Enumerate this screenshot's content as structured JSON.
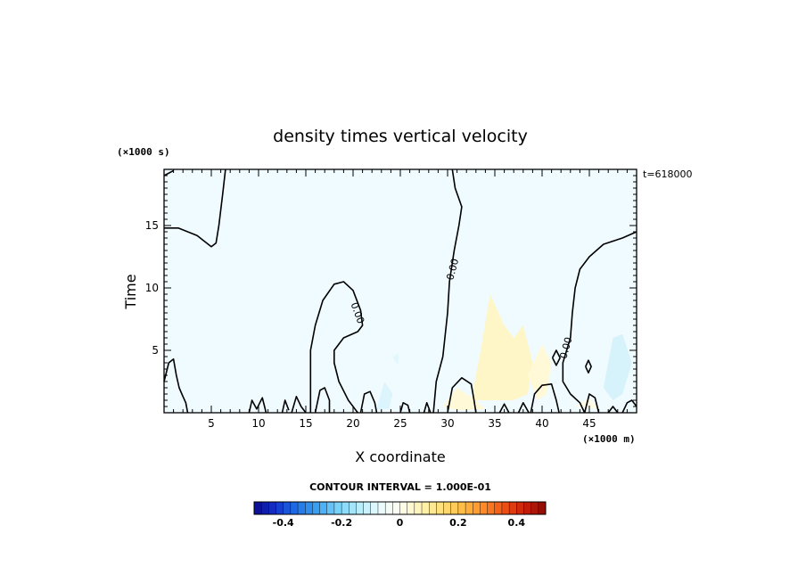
{
  "chart_data": {
    "type": "heatmap",
    "title": "density times vertical velocity",
    "xlabel": "X coordinate",
    "ylabel": "Time",
    "x_unit": "(×1000 m)",
    "y_unit": "(×1000 s)",
    "time_label": "t=618000",
    "xlim": [
      0,
      50
    ],
    "ylim": [
      0,
      19.5
    ],
    "x_ticks": [
      5,
      10,
      15,
      20,
      25,
      30,
      35,
      40,
      45
    ],
    "y_ticks": [
      5,
      10,
      15
    ],
    "contour_interval_text": "CONTOUR INTERVAL = 1.000E-01",
    "contour_labels": [
      {
        "text": "0.00",
        "x": 20.5,
        "y": 8.0,
        "angle": 70
      },
      {
        "text": "0.00",
        "x": 30.5,
        "y": 11.5,
        "angle": -75
      },
      {
        "text": "0.00",
        "x": 42.5,
        "y": 5.2,
        "angle": -75
      }
    ],
    "colorbar": {
      "min": -0.5,
      "max": 0.5,
      "tick_values": [
        -0.4,
        -0.2,
        0,
        0.2,
        0.4
      ],
      "tick_labels": [
        "-0.4",
        "-0.2",
        "0",
        "0.2",
        "0.4"
      ],
      "colors": [
        "#0a0a8c",
        "#1430c8",
        "#1e6ee6",
        "#3ca0f0",
        "#78d2f8",
        "#b4ecfc",
        "#e8fafe",
        "#fffef0",
        "#fff4b4",
        "#ffe078",
        "#ffbe46",
        "#ff8c28",
        "#f05014",
        "#c81e0a",
        "#8c0a05"
      ]
    },
    "field_background": "#f0fbff",
    "shaded_regions": [
      {
        "value": 0.04,
        "color": "#fff6c8",
        "polygon": [
          [
            32.5,
            1
          ],
          [
            33.5,
            5
          ],
          [
            34.5,
            9.5
          ],
          [
            36,
            7
          ],
          [
            37,
            6
          ],
          [
            38,
            7
          ],
          [
            39,
            4
          ],
          [
            38.5,
            1.5
          ],
          [
            37,
            1
          ],
          [
            35,
            1
          ]
        ]
      },
      {
        "value": 0.03,
        "color": "#fff9d8",
        "polygon": [
          [
            29.5,
            0.5
          ],
          [
            31,
            2
          ],
          [
            33,
            1
          ],
          [
            34,
            0.3
          ],
          [
            31,
            0.2
          ]
        ]
      },
      {
        "value": 0.03,
        "color": "#fff9d8",
        "polygon": [
          [
            38.5,
            3
          ],
          [
            40,
            5.5
          ],
          [
            41,
            4
          ],
          [
            40.5,
            1.5
          ],
          [
            39.5,
            1
          ]
        ]
      },
      {
        "value": -0.06,
        "color": "#d6f3fc",
        "polygon": [
          [
            46.5,
            2
          ],
          [
            47.5,
            6
          ],
          [
            48.5,
            6.3
          ],
          [
            49.5,
            4
          ],
          [
            48.5,
            1.5
          ],
          [
            47.5,
            1
          ]
        ]
      },
      {
        "value": -0.05,
        "color": "#dcf5fd",
        "polygon": [
          [
            22.5,
            0.3
          ],
          [
            23.3,
            2.5
          ],
          [
            24.2,
            1.5
          ],
          [
            23.8,
            0.3
          ]
        ]
      },
      {
        "value": -0.04,
        "color": "#e2f6fd",
        "polygon": [
          [
            24.2,
            4.4
          ],
          [
            24.8,
            4.8
          ],
          [
            24.8,
            3.8
          ]
        ]
      },
      {
        "value": 0.02,
        "color": "#fffbe4",
        "polygon": [
          [
            43.5,
            0.5
          ],
          [
            45,
            1.2
          ],
          [
            46,
            0.3
          ]
        ]
      }
    ],
    "contours": [
      [
        [
          0,
          19
        ],
        [
          1,
          19.4
        ]
      ],
      [
        [
          0,
          14.8
        ],
        [
          1.5,
          14.8
        ],
        [
          3.5,
          14.2
        ],
        [
          5,
          13.3
        ],
        [
          5.5,
          13.6
        ],
        [
          5.8,
          15
        ],
        [
          6.2,
          17.5
        ],
        [
          6.5,
          19.5
        ]
      ],
      [
        [
          15.5,
          0
        ],
        [
          15.5,
          5
        ],
        [
          16,
          7
        ],
        [
          16.8,
          9
        ],
        [
          18,
          10.3
        ],
        [
          19,
          10.5
        ],
        [
          20,
          9.8
        ],
        [
          20.8,
          8.2
        ],
        [
          21,
          7
        ],
        [
          20.5,
          6.5
        ],
        [
          19,
          6
        ],
        [
          18,
          5
        ],
        [
          18,
          4
        ],
        [
          18.5,
          2.5
        ],
        [
          19.5,
          1
        ],
        [
          20.2,
          0.3
        ],
        [
          20.5,
          0
        ]
      ],
      [
        [
          28.5,
          0
        ],
        [
          28.8,
          2.5
        ],
        [
          29.5,
          4.5
        ],
        [
          30,
          8
        ],
        [
          30.2,
          10.5
        ],
        [
          30.7,
          13
        ],
        [
          31.2,
          15
        ],
        [
          31.5,
          16.5
        ],
        [
          30.8,
          18
        ],
        [
          30.5,
          19.5
        ]
      ],
      [
        [
          50,
          14.5
        ],
        [
          48.5,
          14
        ],
        [
          46.5,
          13.5
        ],
        [
          45,
          12.5
        ],
        [
          44,
          11.5
        ],
        [
          43.5,
          10
        ],
        [
          43.2,
          8
        ],
        [
          43,
          6
        ],
        [
          42.2,
          4
        ],
        [
          42.2,
          2.5
        ],
        [
          43,
          1.5
        ],
        [
          44,
          0.8
        ],
        [
          44.5,
          0
        ]
      ],
      [
        [
          0,
          2.5
        ],
        [
          0.5,
          4
        ],
        [
          1,
          4.3
        ],
        [
          1.3,
          3
        ],
        [
          1.6,
          2
        ],
        [
          2,
          1.3
        ],
        [
          2.3,
          0.8
        ],
        [
          2.5,
          0
        ]
      ],
      [
        [
          12.5,
          0
        ],
        [
          12.8,
          1
        ],
        [
          13.2,
          0.2
        ]
      ],
      [
        [
          13.5,
          0
        ],
        [
          14,
          1.3
        ],
        [
          14.5,
          0.5
        ],
        [
          15,
          0
        ]
      ],
      [
        [
          9,
          0
        ],
        [
          9.3,
          1
        ],
        [
          9.8,
          0.3
        ],
        [
          10.4,
          1.2
        ],
        [
          10.8,
          0
        ]
      ],
      [
        [
          16,
          0
        ],
        [
          16.5,
          1.8
        ],
        [
          17,
          2
        ],
        [
          17.5,
          1
        ],
        [
          17.5,
          0
        ]
      ],
      [
        [
          20.8,
          0
        ],
        [
          21.2,
          1.5
        ],
        [
          21.8,
          1.7
        ],
        [
          22.3,
          0.8
        ],
        [
          22.5,
          0
        ]
      ],
      [
        [
          25,
          0
        ],
        [
          25.3,
          0.8
        ],
        [
          25.8,
          0.6
        ],
        [
          26,
          0
        ]
      ],
      [
        [
          27.5,
          0
        ],
        [
          27.8,
          0.8
        ],
        [
          28.2,
          0
        ]
      ],
      [
        [
          30,
          0
        ],
        [
          30.5,
          2
        ],
        [
          31.5,
          2.8
        ],
        [
          32.5,
          2.3
        ],
        [
          32.8,
          1
        ],
        [
          33,
          0
        ]
      ],
      [
        [
          35.5,
          0
        ],
        [
          36,
          0.7
        ],
        [
          36.5,
          0
        ]
      ],
      [
        [
          37.5,
          0
        ],
        [
          38,
          0.8
        ],
        [
          38.6,
          0
        ]
      ],
      [
        [
          38.8,
          0
        ],
        [
          39.2,
          1.5
        ],
        [
          40,
          2.2
        ],
        [
          41,
          2.3
        ],
        [
          41.5,
          1
        ],
        [
          41.8,
          0
        ]
      ],
      [
        [
          44.5,
          0
        ],
        [
          45,
          1.5
        ],
        [
          45.6,
          1.2
        ],
        [
          46,
          0
        ]
      ],
      [
        [
          47,
          0
        ],
        [
          47.5,
          0.5
        ],
        [
          48,
          0
        ]
      ],
      [
        [
          48.5,
          0
        ],
        [
          49,
          0.8
        ],
        [
          49.5,
          1
        ],
        [
          50,
          0.5
        ]
      ],
      [
        [
          41.1,
          4.4
        ],
        [
          41.5,
          5
        ],
        [
          41.9,
          4.4
        ],
        [
          41.5,
          3.8
        ],
        [
          41.1,
          4.4
        ]
      ],
      [
        [
          44.6,
          3.7
        ],
        [
          44.9,
          4.2
        ],
        [
          45.2,
          3.7
        ],
        [
          44.9,
          3.2
        ],
        [
          44.6,
          3.7
        ]
      ]
    ]
  }
}
